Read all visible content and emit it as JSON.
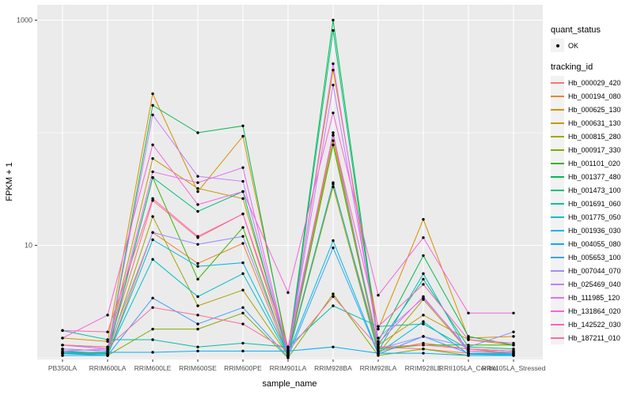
{
  "colors": {
    "panel_bg": "#ebebeb",
    "grid": "#ffffff",
    "tick_label": "#4d4d4d",
    "axis_title": "#000000",
    "point": "#000000",
    "legend_key_bg": "#f2f2f2"
  },
  "legend": {
    "quant_status_title": "quant_status",
    "quant_status_items": [
      {
        "label": "OK",
        "marker": "point"
      }
    ],
    "tracking_title": "tracking_id"
  },
  "chart_data": {
    "type": "line",
    "title": "",
    "xlabel": "sample_name",
    "ylabel": "FPKM + 1",
    "y_scale": "log10",
    "ylim": [
      0.95,
      1100
    ],
    "y_major_ticks": [
      {
        "value": 1000,
        "label": "1000"
      },
      {
        "value": 10,
        "label": "10"
      }
    ],
    "y_minor_ticks": [
      100,
      1
    ],
    "grid": true,
    "legend_position": "right",
    "marker": "black point on every value (quant_status OK)",
    "categories": [
      "PB350LA",
      "RRIM600LA",
      "RRIM600LE",
      "RRIM600SE",
      "RRIM600PE",
      "RRIM901LA",
      "RRIM928BA",
      "RRIM928LA",
      "RRIM928LE",
      "RRII105LA_Control",
      "RRII105LA_Stressed"
    ],
    "series": [
      {
        "name": "Hb_000029_420",
        "color": "#F8766D",
        "values": [
          1.3,
          1.2,
          25,
          11.7,
          19,
          1.1,
          35,
          1.25,
          1.2,
          1.1,
          1.05
        ]
      },
      {
        "name": "Hb_000194_080",
        "color": "#EA8331",
        "values": [
          1.1,
          1.05,
          13,
          6.9,
          10.4,
          1.05,
          95,
          1.15,
          1.35,
          1.2,
          1.1
        ]
      },
      {
        "name": "Hb_000625_130",
        "color": "#D89000",
        "values": [
          1.5,
          1.4,
          222,
          30,
          93,
          1.2,
          360,
          1.8,
          17,
          1.5,
          1.55
        ]
      },
      {
        "name": "Hb_000631_130",
        "color": "#C09B00",
        "values": [
          1.3,
          1.25,
          59,
          32,
          26,
          1.15,
          85,
          1.3,
          2.4,
          1.45,
          1.3
        ]
      },
      {
        "name": "Hb_000815_280",
        "color": "#A3A500",
        "values": [
          1.1,
          1.1,
          18,
          2.9,
          4.0,
          1.05,
          33,
          1.1,
          3.3,
          1.15,
          1.1
        ]
      },
      {
        "name": "Hb_000917_330",
        "color": "#7CAE00",
        "values": [
          1.05,
          1.05,
          1.8,
          1.8,
          2.5,
          1.0,
          3.7,
          1.05,
          1.2,
          1.05,
          1.05
        ]
      },
      {
        "name": "Hb_001101_020",
        "color": "#39B600",
        "values": [
          1.1,
          1.08,
          40,
          5.0,
          14.4,
          1.05,
          78,
          1.2,
          1.3,
          1.3,
          1.3
        ]
      },
      {
        "name": "Hb_001377_480",
        "color": "#00BB4E",
        "values": [
          1.2,
          1.15,
          175,
          100,
          115,
          1.1,
          1000,
          1.4,
          8.1,
          1.55,
          1.3
        ]
      },
      {
        "name": "Hb_001473_100",
        "color": "#00BF7D",
        "values": [
          1.15,
          1.1,
          40,
          20,
          30,
          1.05,
          810,
          1.3,
          5.0,
          1.25,
          1.2
        ]
      },
      {
        "name": "Hb_001691_060",
        "color": "#00C1A3",
        "values": [
          1.75,
          1.45,
          1.45,
          1.25,
          1.35,
          1.25,
          2.9,
          1.9,
          2.0,
          1.2,
          1.15
        ]
      },
      {
        "name": "Hb_001775_050",
        "color": "#00BFC4",
        "values": [
          1.1,
          1.08,
          7.5,
          3.5,
          5.6,
          1.05,
          36,
          1.15,
          5.6,
          1.1,
          1.08
        ]
      },
      {
        "name": "Hb_001936_030",
        "color": "#00BAE0",
        "values": [
          1.09,
          1.05,
          11.2,
          6.5,
          7.0,
          1.08,
          11,
          1.1,
          2.1,
          1.08,
          1.06
        ]
      },
      {
        "name": "Hb_004055_080",
        "color": "#00B0F6",
        "values": [
          1.12,
          1.12,
          1.12,
          1.15,
          1.15,
          1.15,
          1.25,
          1.1,
          1.1,
          1.05,
          1.05
        ]
      },
      {
        "name": "Hb_005653_100",
        "color": "#35A2FF",
        "values": [
          1.05,
          1.05,
          3.4,
          2.0,
          2.8,
          1.02,
          9.5,
          1.08,
          1.55,
          1.1,
          1.1
        ]
      },
      {
        "name": "Hb_007044_070",
        "color": "#9590FF",
        "values": [
          1.3,
          1.2,
          13,
          10.2,
          12,
          1.1,
          100,
          1.2,
          1.55,
          1.25,
          1.7
        ]
      },
      {
        "name": "Hb_025469_040",
        "color": "#C77CFF",
        "values": [
          1.2,
          1.15,
          144,
          41,
          37,
          1.1,
          265,
          1.5,
          3.4,
          1.2,
          1.15
        ]
      },
      {
        "name": "Hb_111985_120",
        "color": "#E76BF3",
        "values": [
          1.15,
          1.2,
          45,
          36,
          49,
          1.1,
          410,
          1.35,
          3.5,
          1.15,
          1.12
        ]
      },
      {
        "name": "Hb_131864_020",
        "color": "#FA62DB",
        "values": [
          1.5,
          2.4,
          78,
          23,
          30,
          3.8,
          150,
          3.6,
          11.7,
          2.5,
          2.5
        ]
      },
      {
        "name": "Hb_142522_030",
        "color": "#FF62BC",
        "values": [
          1.75,
          1.7,
          26,
          12,
          19,
          1.25,
          95,
          1.9,
          4.5,
          1.45,
          1.35
        ]
      },
      {
        "name": "Hb_187211_010",
        "color": "#FF6A98",
        "values": [
          1.3,
          1.25,
          2.8,
          2.4,
          2.0,
          1.15,
          3.5,
          1.25,
          1.3,
          1.2,
          1.15
        ]
      }
    ]
  }
}
